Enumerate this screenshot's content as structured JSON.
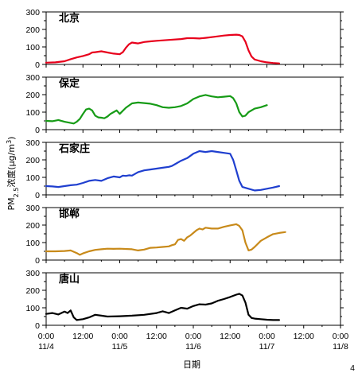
{
  "chart_data": {
    "type": "line",
    "ylabel": "PM2.5浓度(μg/m3)",
    "ylabel_parts": {
      "main": "PM",
      "sub": "2.5",
      "mid": "浓度(μg/m",
      "sup": "3",
      "end": ")"
    },
    "xlabel": "日期",
    "xlim": [
      0,
      96
    ],
    "x_ticks": [
      {
        "x": 0,
        "line1": "0:00",
        "line2": "11/4"
      },
      {
        "x": 12,
        "line1": "12:00",
        "line2": ""
      },
      {
        "x": 24,
        "line1": "0:00",
        "line2": "11/5"
      },
      {
        "x": 36,
        "line1": "12:00",
        "line2": ""
      },
      {
        "x": 48,
        "line1": "0:00",
        "line2": "11/6"
      },
      {
        "x": 60,
        "line1": "12:00",
        "line2": ""
      },
      {
        "x": 72,
        "line1": "0:00",
        "line2": "11/7"
      },
      {
        "x": 84,
        "line1": "12:00",
        "line2": ""
      },
      {
        "x": 96,
        "line1": "0:00",
        "line2": "11/8"
      }
    ],
    "corner_note": "4",
    "panels": [
      {
        "name": "北京",
        "color": "#e8001c",
        "ylim": [
          0,
          300
        ],
        "yticks": [
          0,
          100,
          200,
          300
        ],
        "points": [
          [
            0,
            10
          ],
          [
            3,
            12
          ],
          [
            6,
            18
          ],
          [
            8,
            30
          ],
          [
            10,
            40
          ],
          [
            12,
            48
          ],
          [
            14,
            58
          ],
          [
            15,
            68
          ],
          [
            16,
            70
          ],
          [
            18,
            75
          ],
          [
            20,
            68
          ],
          [
            22,
            62
          ],
          [
            24,
            58
          ],
          [
            25,
            70
          ],
          [
            26,
            95
          ],
          [
            27,
            115
          ],
          [
            28,
            125
          ],
          [
            30,
            120
          ],
          [
            32,
            128
          ],
          [
            34,
            132
          ],
          [
            36,
            135
          ],
          [
            40,
            140
          ],
          [
            44,
            145
          ],
          [
            46,
            150
          ],
          [
            48,
            150
          ],
          [
            50,
            148
          ],
          [
            52,
            152
          ],
          [
            55,
            158
          ],
          [
            58,
            165
          ],
          [
            60,
            168
          ],
          [
            62,
            170
          ],
          [
            63,
            168
          ],
          [
            64,
            160
          ],
          [
            65,
            130
          ],
          [
            66,
            80
          ],
          [
            67,
            45
          ],
          [
            68,
            28
          ],
          [
            70,
            18
          ],
          [
            72,
            12
          ],
          [
            74,
            8
          ],
          [
            76,
            6
          ]
        ]
      },
      {
        "name": "保定",
        "color": "#169b16",
        "ylim": [
          0,
          300
        ],
        "yticks": [
          0,
          100,
          200,
          300
        ],
        "points": [
          [
            0,
            50
          ],
          [
            2,
            48
          ],
          [
            4,
            55
          ],
          [
            6,
            45
          ],
          [
            8,
            38
          ],
          [
            9,
            35
          ],
          [
            10,
            45
          ],
          [
            11,
            62
          ],
          [
            12,
            90
          ],
          [
            13,
            115
          ],
          [
            14,
            120
          ],
          [
            15,
            110
          ],
          [
            16,
            80
          ],
          [
            17,
            70
          ],
          [
            18,
            68
          ],
          [
            19,
            65
          ],
          [
            20,
            75
          ],
          [
            21,
            90
          ],
          [
            22,
            100
          ],
          [
            23,
            110
          ],
          [
            24,
            90
          ],
          [
            26,
            125
          ],
          [
            28,
            150
          ],
          [
            30,
            155
          ],
          [
            32,
            152
          ],
          [
            34,
            148
          ],
          [
            36,
            140
          ],
          [
            38,
            128
          ],
          [
            40,
            125
          ],
          [
            42,
            128
          ],
          [
            44,
            135
          ],
          [
            46,
            150
          ],
          [
            48,
            175
          ],
          [
            50,
            190
          ],
          [
            52,
            198
          ],
          [
            54,
            190
          ],
          [
            56,
            185
          ],
          [
            58,
            188
          ],
          [
            60,
            192
          ],
          [
            61,
            180
          ],
          [
            62,
            150
          ],
          [
            63,
            100
          ],
          [
            64,
            75
          ],
          [
            65,
            80
          ],
          [
            66,
            100
          ],
          [
            68,
            120
          ],
          [
            70,
            128
          ],
          [
            72,
            140
          ]
        ]
      },
      {
        "name": "石家庄",
        "color": "#1f3fcf",
        "ylim": [
          0,
          300
        ],
        "yticks": [
          0,
          100,
          200,
          300
        ],
        "points": [
          [
            0,
            50
          ],
          [
            2,
            48
          ],
          [
            4,
            45
          ],
          [
            6,
            50
          ],
          [
            8,
            55
          ],
          [
            10,
            58
          ],
          [
            12,
            68
          ],
          [
            14,
            80
          ],
          [
            16,
            85
          ],
          [
            18,
            80
          ],
          [
            20,
            95
          ],
          [
            22,
            105
          ],
          [
            24,
            100
          ],
          [
            25,
            110
          ],
          [
            26,
            108
          ],
          [
            27,
            112
          ],
          [
            28,
            110
          ],
          [
            30,
            130
          ],
          [
            32,
            140
          ],
          [
            34,
            145
          ],
          [
            36,
            150
          ],
          [
            38,
            155
          ],
          [
            40,
            160
          ],
          [
            41,
            165
          ],
          [
            42,
            175
          ],
          [
            44,
            195
          ],
          [
            46,
            210
          ],
          [
            48,
            235
          ],
          [
            50,
            250
          ],
          [
            52,
            245
          ],
          [
            54,
            250
          ],
          [
            56,
            245
          ],
          [
            58,
            240
          ],
          [
            60,
            235
          ],
          [
            61,
            200
          ],
          [
            62,
            140
          ],
          [
            63,
            80
          ],
          [
            64,
            45
          ],
          [
            66,
            35
          ],
          [
            68,
            25
          ],
          [
            70,
            28
          ],
          [
            72,
            35
          ],
          [
            74,
            42
          ],
          [
            76,
            50
          ]
        ]
      },
      {
        "name": "邯郸",
        "color": "#c88a1a",
        "ylim": [
          0,
          300
        ],
        "yticks": [
          0,
          100,
          200,
          300
        ],
        "points": [
          [
            0,
            50
          ],
          [
            3,
            50
          ],
          [
            6,
            52
          ],
          [
            8,
            55
          ],
          [
            10,
            40
          ],
          [
            11,
            30
          ],
          [
            12,
            38
          ],
          [
            14,
            50
          ],
          [
            16,
            58
          ],
          [
            18,
            62
          ],
          [
            20,
            65
          ],
          [
            22,
            64
          ],
          [
            24,
            65
          ],
          [
            28,
            62
          ],
          [
            30,
            55
          ],
          [
            32,
            60
          ],
          [
            34,
            70
          ],
          [
            36,
            72
          ],
          [
            38,
            75
          ],
          [
            40,
            78
          ],
          [
            41,
            85
          ],
          [
            42,
            90
          ],
          [
            43,
            115
          ],
          [
            44,
            120
          ],
          [
            45,
            110
          ],
          [
            46,
            130
          ],
          [
            47,
            140
          ],
          [
            48,
            155
          ],
          [
            49,
            170
          ],
          [
            50,
            180
          ],
          [
            51,
            175
          ],
          [
            52,
            185
          ],
          [
            54,
            180
          ],
          [
            56,
            180
          ],
          [
            58,
            190
          ],
          [
            60,
            198
          ],
          [
            62,
            205
          ],
          [
            63,
            195
          ],
          [
            64,
            170
          ],
          [
            65,
            100
          ],
          [
            66,
            55
          ],
          [
            67,
            60
          ],
          [
            68,
            75
          ],
          [
            70,
            110
          ],
          [
            72,
            130
          ],
          [
            74,
            148
          ],
          [
            76,
            155
          ],
          [
            78,
            160
          ]
        ]
      },
      {
        "name": "唐山",
        "color": "#000000",
        "ylim": [
          0,
          300
        ],
        "yticks": [
          0,
          100,
          200,
          300
        ],
        "points": [
          [
            0,
            65
          ],
          [
            2,
            70
          ],
          [
            4,
            62
          ],
          [
            6,
            78
          ],
          [
            7,
            70
          ],
          [
            8,
            85
          ],
          [
            9,
            45
          ],
          [
            10,
            30
          ],
          [
            12,
            35
          ],
          [
            14,
            45
          ],
          [
            16,
            60
          ],
          [
            18,
            55
          ],
          [
            20,
            50
          ],
          [
            24,
            52
          ],
          [
            28,
            55
          ],
          [
            32,
            60
          ],
          [
            36,
            70
          ],
          [
            38,
            80
          ],
          [
            40,
            70
          ],
          [
            42,
            85
          ],
          [
            44,
            100
          ],
          [
            46,
            95
          ],
          [
            48,
            110
          ],
          [
            50,
            120
          ],
          [
            52,
            118
          ],
          [
            54,
            125
          ],
          [
            56,
            140
          ],
          [
            58,
            150
          ],
          [
            60,
            162
          ],
          [
            62,
            175
          ],
          [
            63,
            180
          ],
          [
            64,
            170
          ],
          [
            65,
            130
          ],
          [
            66,
            60
          ],
          [
            67,
            42
          ],
          [
            68,
            38
          ],
          [
            70,
            35
          ],
          [
            72,
            32
          ],
          [
            74,
            30
          ],
          [
            76,
            30
          ]
        ]
      }
    ]
  }
}
